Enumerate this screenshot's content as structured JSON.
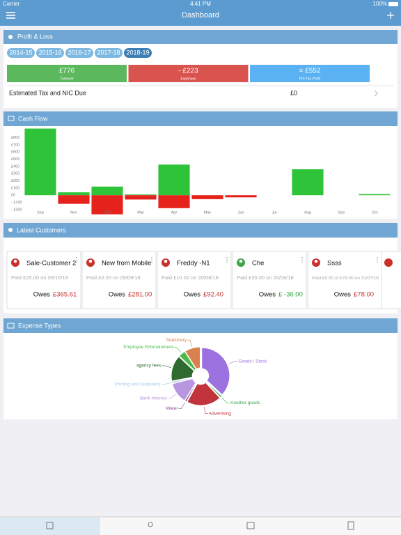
{
  "status": {
    "carrier": "Carrier",
    "time": "4:41 PM",
    "battery": "100%"
  },
  "nav": {
    "title": "Dashboard"
  },
  "profit_loss": {
    "title": "Profit & Loss",
    "years": [
      "2014-15",
      "2015-16",
      "2016-17",
      "2017-18",
      "2018-19"
    ],
    "cards": [
      {
        "value": "£776",
        "label": "Turnover",
        "color": "#5cb85c"
      },
      {
        "value": "- £223",
        "label": "Expenses",
        "color": "#d9534f"
      },
      {
        "value": "= £552",
        "label": "Pre-Tax Profit",
        "color": "#5bb2f2"
      }
    ],
    "tax": {
      "label": "Estimated Tax and NIC Due",
      "value": "£0"
    }
  },
  "customers": {
    "title": "Latest Customers",
    "items": [
      {
        "name": "Sale-Customer 2",
        "paid": "Paid £25.00 on 06/10/18",
        "owes_label": "Owes",
        "owes": "£365.61",
        "color": "#c9302c"
      },
      {
        "name": "New from Mobile",
        "paid": "Paid £0.00 on 09/09/18",
        "owes_label": "Owes",
        "owes": "£281.00",
        "color": "#c9302c"
      },
      {
        "name": "Freddy -N1",
        "paid": "Paid £10.00 on 20/08/18",
        "owes_label": "Owes",
        "owes": "£92.40",
        "color": "#c9302c"
      },
      {
        "name": "Che",
        "paid": "Paid £35.00 on 20/08/18",
        "owes_label": "Owes",
        "owes": "£ -36.00",
        "color": "#3aa646"
      },
      {
        "name": "Ssss",
        "paid": "Paid £0.00 of £78.00 on 31/07/18",
        "owes_label": "Owes",
        "owes": "£78.00",
        "color": "#c9302c"
      }
    ]
  },
  "chart_data": [
    {
      "type": "bar",
      "title": "Cash Flow",
      "categories": [
        "Sep",
        "Nov",
        "Feb",
        "Mar",
        "Apr",
        "May",
        "Jun",
        "Jul",
        "Aug",
        "Sep",
        "Oct"
      ],
      "series": [
        {
          "color": "#2fc33a",
          "values": [
            925,
            40,
            120,
            10,
            425,
            0,
            0,
            0,
            360,
            0,
            15
          ]
        },
        {
          "color": "#e5221c",
          "values": [
            0,
            -120,
            -265,
            -60,
            -180,
            -55,
            -30,
            0,
            0,
            0,
            0
          ]
        }
      ],
      "ylim": [
        -230,
        940
      ],
      "yticks": [
        {
          "value": 800,
          "label": "£800"
        },
        {
          "value": 700,
          "label": "£700"
        },
        {
          "value": 600,
          "label": "£600"
        },
        {
          "value": 500,
          "label": "£500"
        },
        {
          "value": 400,
          "label": "£400"
        },
        {
          "value": 300,
          "label": "£300"
        },
        {
          "value": 200,
          "label": "£200"
        },
        {
          "value": 100,
          "label": "£100"
        },
        {
          "value": 0,
          "label": "£0"
        },
        {
          "value": -100,
          "label": "- £100"
        },
        {
          "value": -200,
          "label": "- £200"
        }
      ]
    },
    {
      "type": "pie",
      "title": "Expense Types",
      "categories": [
        "Goods / Stock",
        "Another goods",
        "Advertising",
        "Water",
        "Bank Interest",
        "Printing and Stationery",
        "agency fees",
        "Employee Entertainment",
        "Stationery"
      ],
      "values": [
        37,
        1,
        20,
        1,
        12,
        1,
        15,
        4,
        9
      ],
      "colors": [
        "#9b72e0",
        "#3aa646",
        "#c1343c",
        "#8a4a8a",
        "#b896e0",
        "#a9c8e6",
        "#2f6b2f",
        "#4cb84c",
        "#d9804f"
      ]
    }
  ]
}
